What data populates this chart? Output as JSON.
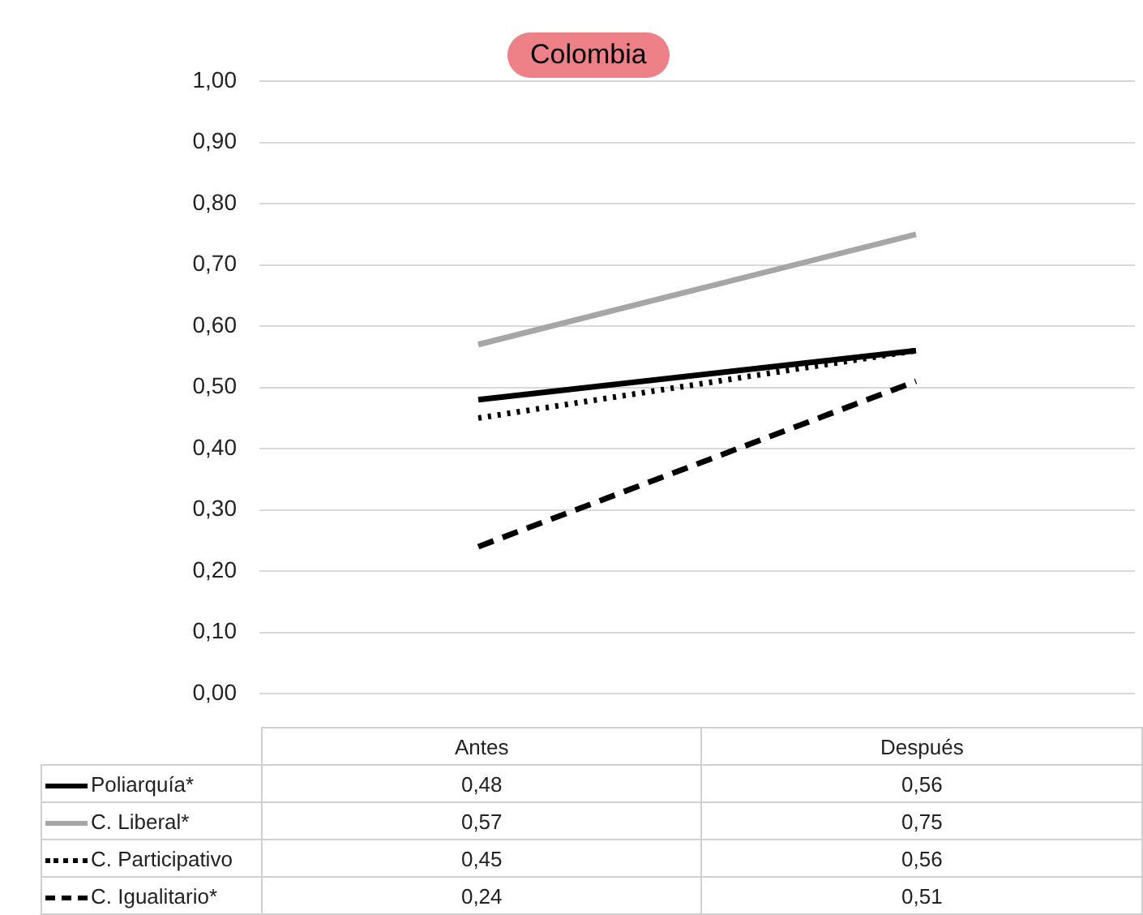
{
  "chart_data": {
    "type": "line",
    "title": "Colombia",
    "categories": [
      "Antes",
      "Después"
    ],
    "ylim": [
      0,
      1
    ],
    "yticks": [
      {
        "value": 0,
        "label": "0,00"
      },
      {
        "value": 0.1,
        "label": "0,10"
      },
      {
        "value": 0.2,
        "label": "0,20"
      },
      {
        "value": 0.3,
        "label": "0,30"
      },
      {
        "value": 0.4,
        "label": "0,40"
      },
      {
        "value": 0.5,
        "label": "0,50"
      },
      {
        "value": 0.6,
        "label": "0,60"
      },
      {
        "value": 0.7,
        "label": "0,70"
      },
      {
        "value": 0.8,
        "label": "0,80"
      },
      {
        "value": 0.9,
        "label": "0,90"
      },
      {
        "value": 1,
        "label": "1,00"
      }
    ],
    "grid": "y",
    "legend": "bottom",
    "marker": "none",
    "series": [
      {
        "name": "Poliarquía*",
        "color": "#000000",
        "line_style": "solid",
        "values": [
          0.48,
          0.56
        ],
        "value_labels": [
          "0,48",
          "0,56"
        ]
      },
      {
        "name": "C. Liberal*",
        "color": "#a6a6a6",
        "line_style": "solid",
        "values": [
          0.57,
          0.75
        ],
        "value_labels": [
          "0,57",
          "0,75"
        ]
      },
      {
        "name": "C. Participativo",
        "color": "#000000",
        "line_style": "dotted",
        "values": [
          0.45,
          0.56
        ],
        "value_labels": [
          "0,45",
          "0,56"
        ]
      },
      {
        "name": "C. Igualitario*",
        "color": "#000000",
        "line_style": "dashed",
        "values": [
          0.24,
          0.51
        ],
        "value_labels": [
          "0,24",
          "0,51"
        ]
      }
    ]
  }
}
